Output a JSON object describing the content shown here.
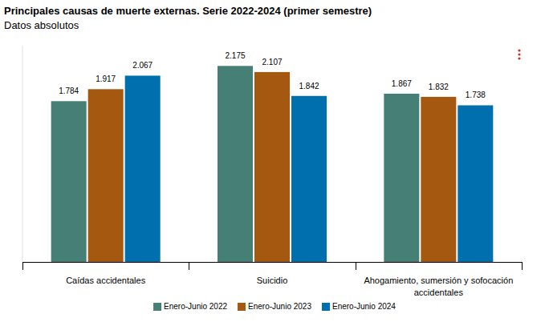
{
  "chart_data": {
    "type": "bar",
    "title": "Principales causas de muerte externas. Serie 2022-2024 (primer semestre)",
    "subtitle": "Datos absolutos",
    "categories": [
      "Caídas accidentales",
      "Suicidio",
      "Ahogamiento, sumersión y sofocación accidentales"
    ],
    "series": [
      {
        "name": "Enero-Junio 2022",
        "color": "#457f75",
        "values": [
          1784,
          2175,
          1867
        ],
        "value_labels": [
          "1.784",
          "2.175",
          "1.867"
        ]
      },
      {
        "name": "Enero-Junio 2023",
        "color": "#a5580f",
        "values": [
          1917,
          2107,
          1832
        ],
        "value_labels": [
          "1.917",
          "2.107",
          "1.832"
        ]
      },
      {
        "name": "Enero-Junio 2024",
        "color": "#006fad",
        "values": [
          2067,
          1842,
          1738
        ],
        "value_labels": [
          "2.067",
          "1.842",
          "1.738"
        ]
      }
    ],
    "ylim": [
      0,
      2400
    ],
    "data_labels": true,
    "tick_labels": "x",
    "legend": "bottom"
  }
}
